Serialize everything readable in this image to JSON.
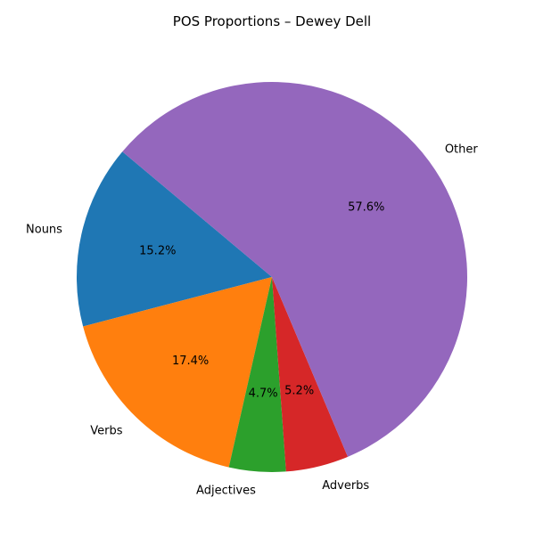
{
  "chart_data": {
    "type": "pie",
    "title": "POS Proportions – Dewey Dell",
    "categories": [
      "Nouns",
      "Verbs",
      "Adjectives",
      "Adverbs",
      "Other"
    ],
    "values": [
      15.2,
      17.4,
      4.7,
      5.2,
      57.6
    ],
    "percent_labels": [
      "15.2%",
      "17.4%",
      "4.7%",
      "5.2%",
      "57.6%"
    ],
    "colors": [
      "#1f77b4",
      "#ff7f0e",
      "#2ca02c",
      "#d62728",
      "#9467bd"
    ],
    "start_angle_deg": 140,
    "direction": "counterclockwise",
    "legend": "none"
  }
}
